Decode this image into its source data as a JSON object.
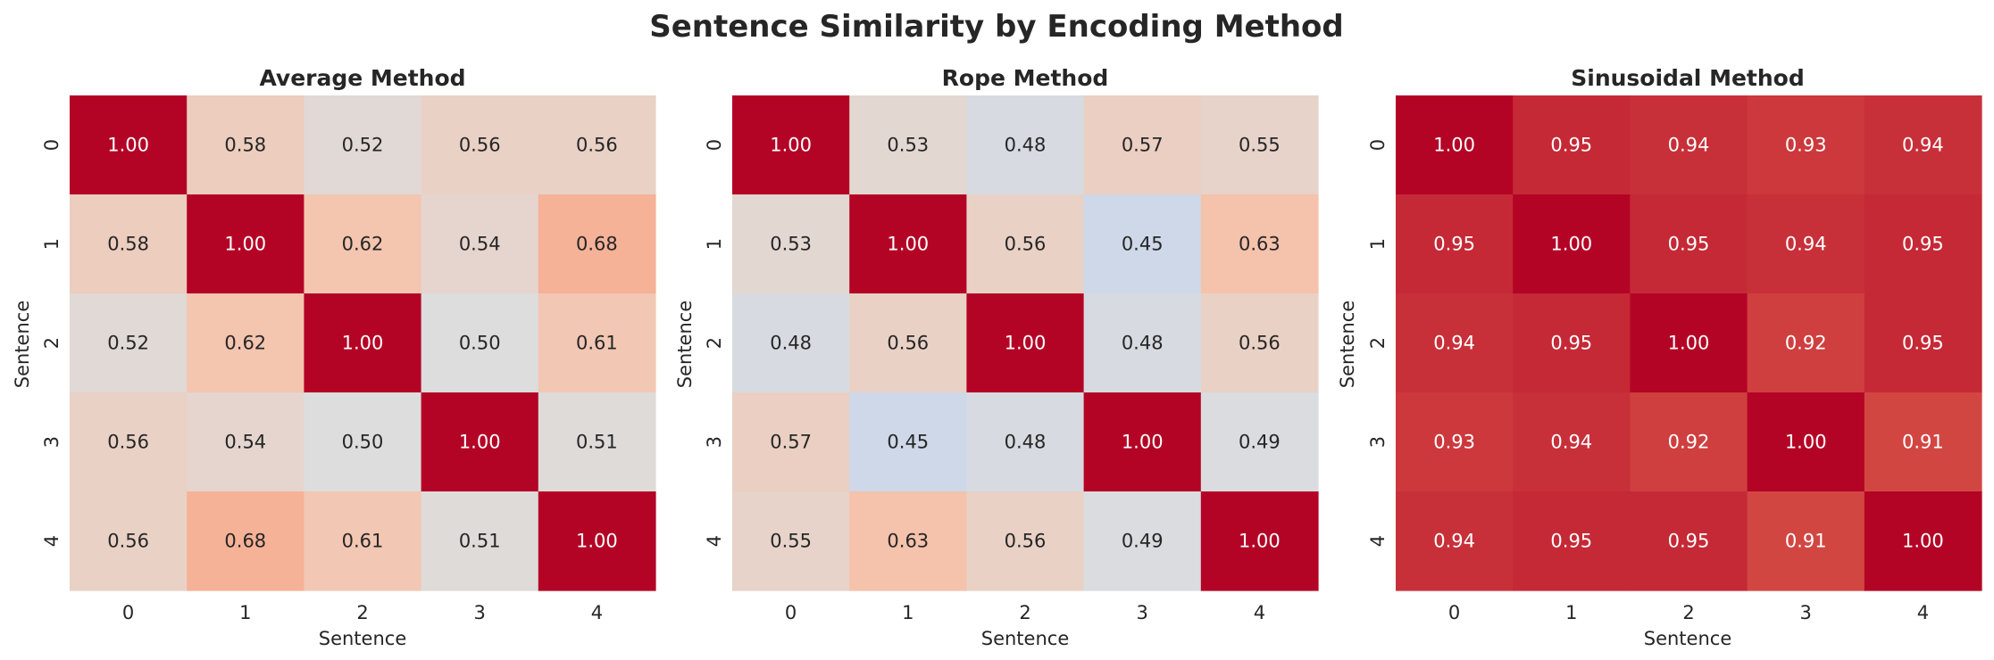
{
  "figure_title": "Sentence Similarity by Encoding Method",
  "chart_data": [
    {
      "type": "heatmap",
      "title": "Average Method",
      "xlabel": "Sentence",
      "ylabel": "Sentence",
      "x": [
        "0",
        "1",
        "2",
        "3",
        "4"
      ],
      "y": [
        "0",
        "1",
        "2",
        "3",
        "4"
      ],
      "colormap": "coolwarm",
      "vmin": 0,
      "vmax": 1,
      "values": [
        [
          1.0,
          0.58,
          0.52,
          0.56,
          0.56
        ],
        [
          0.58,
          1.0,
          0.62,
          0.54,
          0.68
        ],
        [
          0.52,
          0.62,
          1.0,
          0.5,
          0.61
        ],
        [
          0.56,
          0.54,
          0.5,
          1.0,
          0.51
        ],
        [
          0.56,
          0.68,
          0.61,
          0.51,
          1.0
        ]
      ]
    },
    {
      "type": "heatmap",
      "title": "Rope Method",
      "xlabel": "Sentence",
      "ylabel": "Sentence",
      "x": [
        "0",
        "1",
        "2",
        "3",
        "4"
      ],
      "y": [
        "0",
        "1",
        "2",
        "3",
        "4"
      ],
      "colormap": "coolwarm",
      "vmin": 0,
      "vmax": 1,
      "values": [
        [
          1.0,
          0.53,
          0.48,
          0.57,
          0.55
        ],
        [
          0.53,
          1.0,
          0.56,
          0.45,
          0.63
        ],
        [
          0.48,
          0.56,
          1.0,
          0.48,
          0.56
        ],
        [
          0.57,
          0.45,
          0.48,
          1.0,
          0.49
        ],
        [
          0.55,
          0.63,
          0.56,
          0.49,
          1.0
        ]
      ]
    },
    {
      "type": "heatmap",
      "title": "Sinusoidal Method",
      "xlabel": "Sentence",
      "ylabel": "Sentence",
      "x": [
        "0",
        "1",
        "2",
        "3",
        "4"
      ],
      "y": [
        "0",
        "1",
        "2",
        "3",
        "4"
      ],
      "colormap": "coolwarm",
      "vmin": 0,
      "vmax": 1,
      "values": [
        [
          1.0,
          0.95,
          0.94,
          0.93,
          0.94
        ],
        [
          0.95,
          1.0,
          0.95,
          0.94,
          0.95
        ],
        [
          0.94,
          0.95,
          1.0,
          0.92,
          0.95
        ],
        [
          0.93,
          0.94,
          0.92,
          1.0,
          0.91
        ],
        [
          0.94,
          0.95,
          0.95,
          0.91,
          1.0
        ]
      ]
    }
  ]
}
